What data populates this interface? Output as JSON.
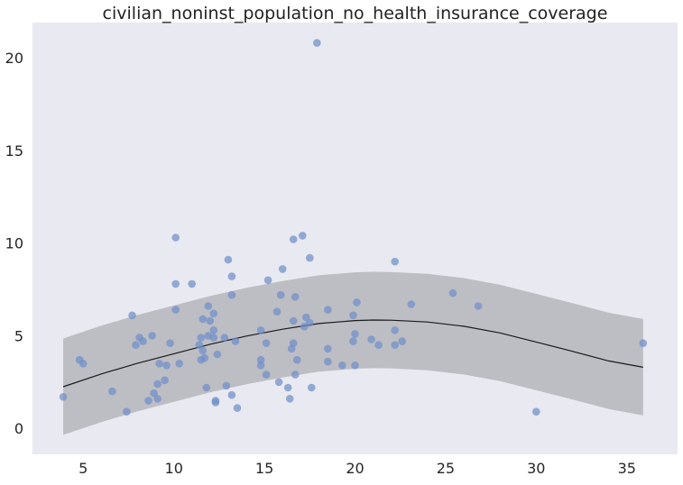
{
  "chart_data": {
    "type": "scatter",
    "title": "civilian_noninst_population_no_health_insurance_coverage",
    "xlabel": "",
    "ylabel": "",
    "xlim": [
      2.2,
      37.8
    ],
    "ylim": [
      -1.4,
      21.9
    ],
    "xticks": [
      5,
      10,
      15,
      20,
      25,
      30,
      35
    ],
    "yticks": [
      0,
      5,
      10,
      15,
      20
    ],
    "grid": false,
    "colors": {
      "background": "#e9e9f1",
      "points": "#6f8fc7",
      "band": "#a9a9b0",
      "fit_line": "#1a1a1a"
    },
    "points": [
      [
        3.9,
        1.7
      ],
      [
        4.8,
        3.7
      ],
      [
        5.0,
        3.5
      ],
      [
        6.6,
        2.0
      ],
      [
        7.4,
        0.9
      ],
      [
        7.7,
        6.1
      ],
      [
        7.9,
        4.5
      ],
      [
        8.1,
        4.9
      ],
      [
        8.3,
        4.7
      ],
      [
        8.6,
        1.5
      ],
      [
        8.8,
        5.0
      ],
      [
        8.9,
        1.9
      ],
      [
        9.1,
        2.4
      ],
      [
        9.1,
        1.6
      ],
      [
        9.2,
        3.5
      ],
      [
        9.5,
        2.6
      ],
      [
        9.6,
        3.4
      ],
      [
        9.8,
        4.6
      ],
      [
        10.1,
        10.3
      ],
      [
        10.1,
        7.8
      ],
      [
        10.1,
        6.4
      ],
      [
        10.3,
        3.5
      ],
      [
        11.0,
        7.8
      ],
      [
        11.4,
        4.5
      ],
      [
        11.5,
        3.7
      ],
      [
        11.5,
        4.9
      ],
      [
        11.6,
        5.9
      ],
      [
        11.6,
        4.2
      ],
      [
        11.7,
        3.8
      ],
      [
        11.8,
        2.2
      ],
      [
        11.9,
        6.6
      ],
      [
        11.9,
        5.0
      ],
      [
        12.0,
        5.8
      ],
      [
        12.2,
        6.2
      ],
      [
        12.2,
        5.3
      ],
      [
        12.2,
        4.9
      ],
      [
        12.3,
        1.5
      ],
      [
        12.3,
        1.4
      ],
      [
        12.4,
        4.0
      ],
      [
        12.8,
        4.9
      ],
      [
        12.9,
        2.3
      ],
      [
        13.0,
        9.1
      ],
      [
        13.2,
        8.2
      ],
      [
        13.2,
        7.2
      ],
      [
        13.2,
        1.8
      ],
      [
        13.4,
        4.7
      ],
      [
        13.5,
        1.1
      ],
      [
        14.8,
        5.3
      ],
      [
        14.8,
        3.7
      ],
      [
        14.8,
        3.4
      ],
      [
        15.1,
        2.9
      ],
      [
        15.1,
        4.6
      ],
      [
        15.2,
        8.0
      ],
      [
        15.7,
        6.3
      ],
      [
        15.8,
        2.5
      ],
      [
        15.9,
        7.2
      ],
      [
        16.0,
        8.6
      ],
      [
        16.3,
        2.2
      ],
      [
        16.4,
        1.6
      ],
      [
        16.5,
        4.3
      ],
      [
        16.6,
        5.8
      ],
      [
        16.6,
        4.6
      ],
      [
        16.6,
        10.2
      ],
      [
        16.7,
        7.1
      ],
      [
        16.7,
        2.9
      ],
      [
        16.8,
        3.7
      ],
      [
        17.1,
        10.4
      ],
      [
        17.2,
        5.5
      ],
      [
        17.3,
        6.0
      ],
      [
        17.5,
        5.7
      ],
      [
        17.5,
        9.2
      ],
      [
        17.6,
        2.2
      ],
      [
        17.9,
        20.8
      ],
      [
        18.5,
        6.4
      ],
      [
        18.5,
        4.3
      ],
      [
        18.5,
        3.6
      ],
      [
        19.3,
        3.4
      ],
      [
        19.9,
        6.1
      ],
      [
        19.9,
        4.7
      ],
      [
        20.0,
        5.1
      ],
      [
        20.0,
        3.4
      ],
      [
        20.1,
        6.8
      ],
      [
        20.9,
        4.8
      ],
      [
        21.3,
        4.5
      ],
      [
        22.2,
        9.0
      ],
      [
        22.2,
        5.3
      ],
      [
        22.2,
        4.5
      ],
      [
        22.6,
        4.7
      ],
      [
        23.1,
        6.7
      ],
      [
        25.4,
        7.3
      ],
      [
        26.8,
        6.6
      ],
      [
        30.0,
        0.9
      ],
      [
        35.9,
        4.6
      ]
    ],
    "fit": {
      "x": [
        3.9,
        6,
        8,
        10,
        12,
        14,
        16,
        18,
        20,
        21,
        22,
        24,
        26,
        28,
        30,
        32,
        34,
        35.9
      ],
      "y": [
        2.25,
        2.94,
        3.52,
        4.03,
        4.54,
        4.98,
        5.35,
        5.66,
        5.82,
        5.85,
        5.84,
        5.74,
        5.51,
        5.15,
        4.66,
        4.16,
        3.64,
        3.3
      ],
      "lower": [
        -0.35,
        0.34,
        0.92,
        1.43,
        1.94,
        2.38,
        2.75,
        3.06,
        3.22,
        3.25,
        3.24,
        3.14,
        2.91,
        2.55,
        2.06,
        1.56,
        1.04,
        0.7
      ],
      "upper": [
        4.85,
        5.54,
        6.12,
        6.63,
        7.14,
        7.58,
        7.95,
        8.26,
        8.42,
        8.45,
        8.44,
        8.34,
        8.11,
        7.75,
        7.26,
        6.76,
        6.24,
        5.9
      ]
    }
  }
}
